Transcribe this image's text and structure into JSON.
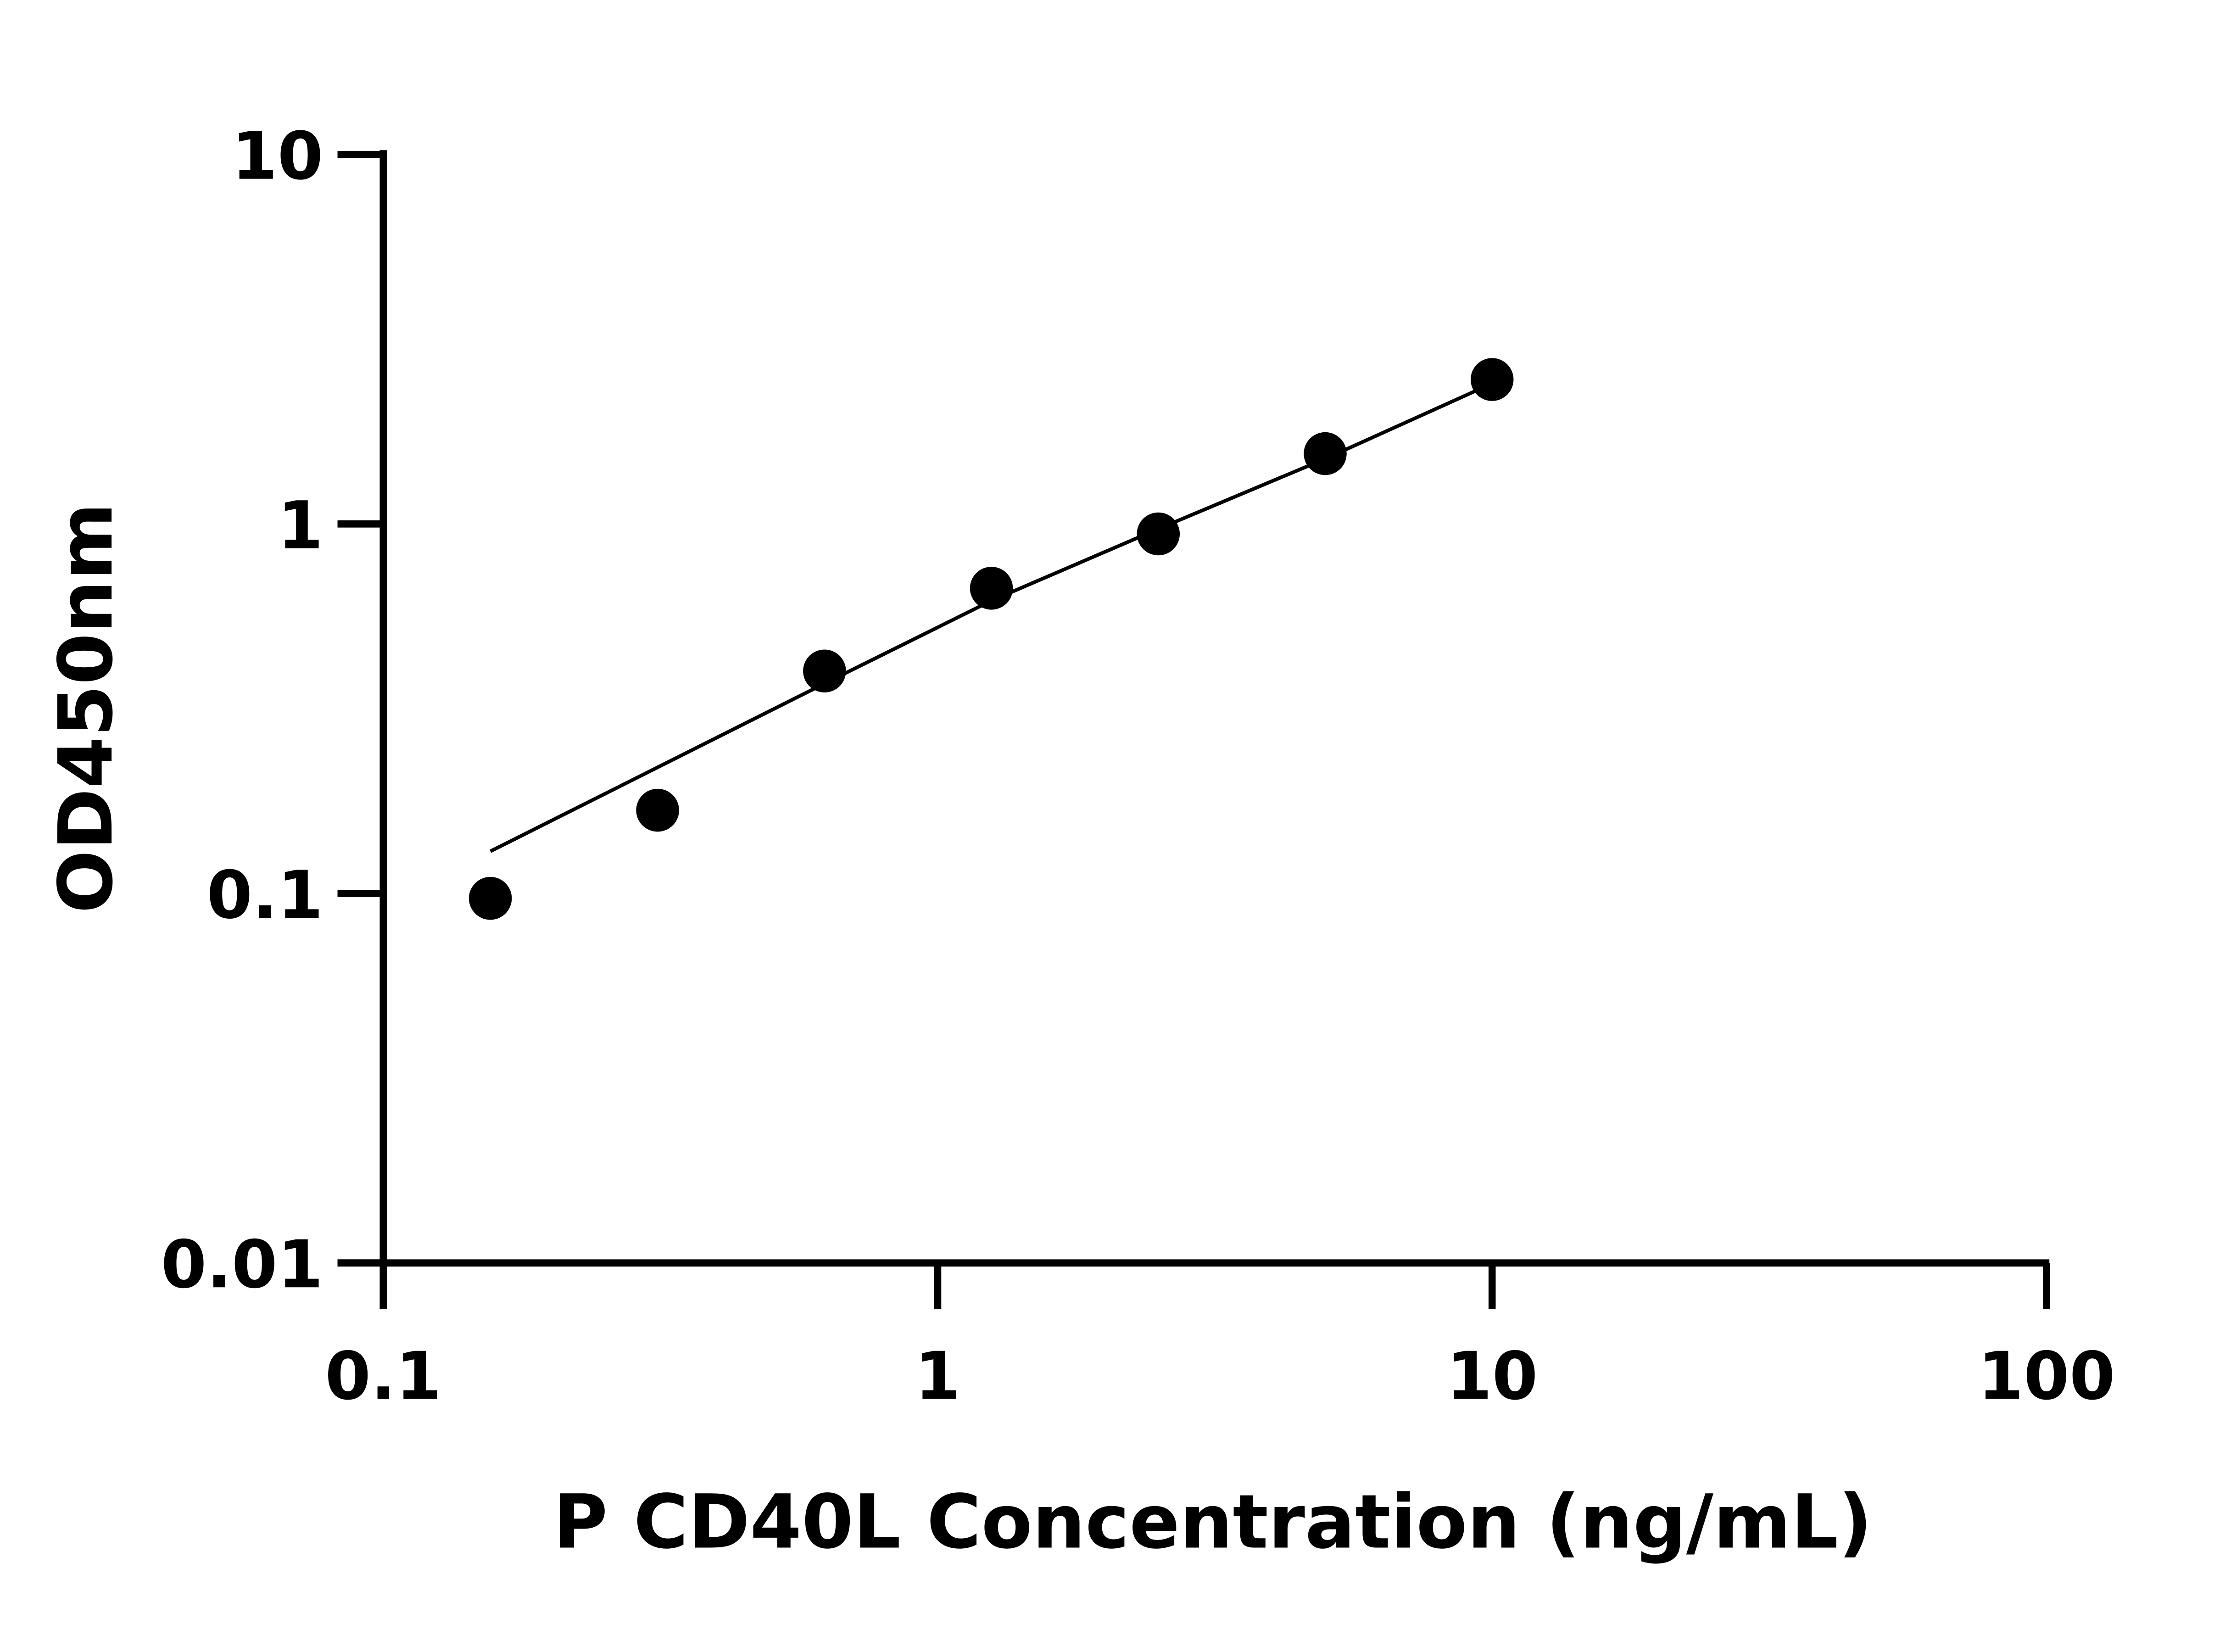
{
  "chart_data": {
    "type": "scatter",
    "title": "",
    "xlabel": "P CD40L Concentration (ng/mL)",
    "ylabel": "OD450nm",
    "x_scale": "log",
    "y_scale": "log",
    "xlim": [
      0.1,
      100
    ],
    "ylim": [
      0.01,
      10
    ],
    "x_ticks": [
      "0.1",
      "1",
      "10",
      "100"
    ],
    "y_ticks": [
      "0.01",
      "0.1",
      "1",
      "10"
    ],
    "grid": false,
    "colors": {
      "points": "#000000",
      "line": "#000000"
    },
    "series": [
      {
        "x": [
          0.156,
          0.3125,
          0.625,
          1.25,
          2.5,
          5,
          10
        ],
        "y": [
          0.097,
          0.168,
          0.4,
          0.67,
          0.94,
          1.55,
          2.46
        ]
      }
    ],
    "fit_line": {
      "x": [
        0.156,
        0.625,
        1.25,
        2.5,
        5,
        10
      ],
      "y": [
        0.13,
        0.37,
        0.62,
        0.97,
        1.5,
        2.4
      ]
    }
  }
}
